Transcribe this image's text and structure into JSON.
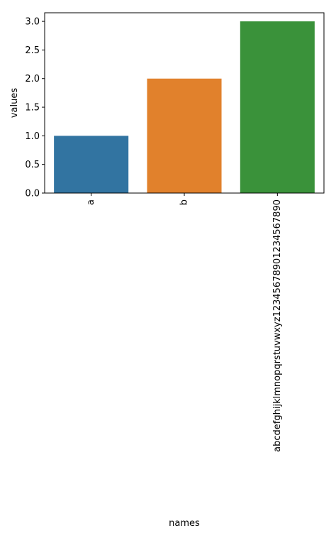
{
  "chart_data": {
    "type": "bar",
    "categories": [
      "a",
      "b",
      "abcdefghijklmnopqrstuvwxyz12345678901234567890"
    ],
    "values": [
      1,
      2,
      3
    ],
    "colors": [
      "#3274a1",
      "#e1812c",
      "#3a923a"
    ],
    "xlabel": "names",
    "ylabel": "values",
    "ylim": [
      0,
      3.15
    ],
    "yticks": [
      0.0,
      0.5,
      1.0,
      1.5,
      2.0,
      2.5,
      3.0
    ],
    "ytick_labels": [
      "0.0",
      "0.5",
      "1.0",
      "1.5",
      "2.0",
      "2.5",
      "3.0"
    ],
    "x_tick_rotation": 90,
    "grid": false,
    "legend": "none"
  }
}
